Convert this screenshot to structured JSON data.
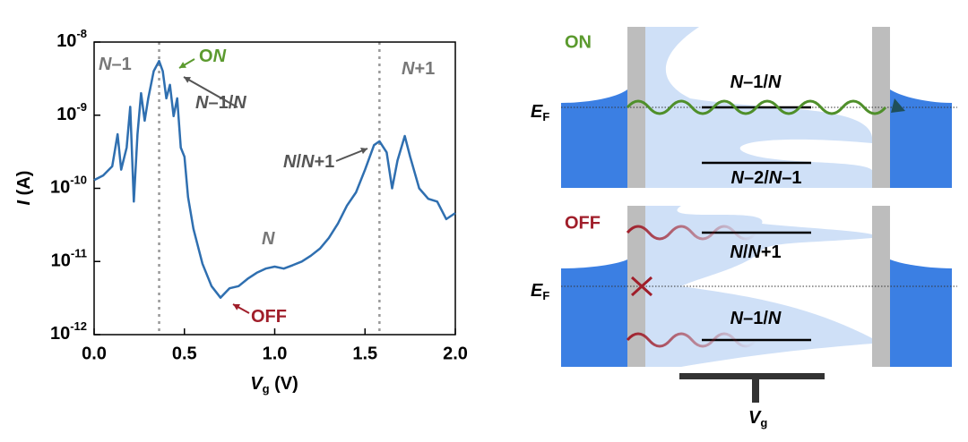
{
  "chart_data": {
    "type": "line",
    "log_y": true,
    "color": "#2f6fb0",
    "xlabel": "Vg (V)",
    "ylabel": "I (A)",
    "x": [
      0,
      0.05,
      0.1,
      0.13,
      0.15,
      0.18,
      0.2,
      0.22,
      0.24,
      0.26,
      0.28,
      0.3,
      0.33,
      0.36,
      0.38,
      0.4,
      0.42,
      0.44,
      0.46,
      0.48,
      0.5,
      0.52,
      0.55,
      0.6,
      0.65,
      0.7,
      0.75,
      0.8,
      0.85,
      0.9,
      0.95,
      1.0,
      1.05,
      1.1,
      1.15,
      1.2,
      1.25,
      1.3,
      1.35,
      1.4,
      1.45,
      1.5,
      1.55,
      1.58,
      1.62,
      1.65,
      1.68,
      1.72,
      1.75,
      1.8,
      1.85,
      1.9,
      1.95,
      2.0
    ],
    "values": [
      1.3e-10,
      1.5e-10,
      2e-10,
      5.5e-10,
      1.8e-10,
      3.6e-10,
      1.3e-09,
      6.6e-11,
      5.5e-10,
      2e-09,
      8.4e-10,
      1.7e-09,
      4e-09,
      5.5e-09,
      4e-09,
      1.7e-09,
      2.6e-09,
      9.7e-10,
      1.7e-09,
      3.6e-10,
      2.7e-10,
      7.6e-11,
      2.8e-11,
      9.3e-12,
      4.6e-12,
      3.2e-12,
      4.3e-12,
      4.6e-12,
      5.8e-12,
      7e-12,
      8e-12,
      8.5e-12,
      8e-12,
      8.9e-12,
      1e-11,
      1.2e-11,
      1.5e-11,
      2.1e-11,
      3.3e-11,
      5.8e-11,
      8.8e-11,
      1.8e-10,
      3.9e-10,
      4.4e-10,
      3.1e-10,
      1e-10,
      2.4e-10,
      5.2e-10,
      2.7e-10,
      1e-10,
      7.2e-11,
      6.6e-11,
      3.8e-11,
      4.6e-11
    ],
    "xlim": [
      0,
      2
    ],
    "xticks": [
      {
        "value": 0,
        "label": "0.0"
      },
      0.5,
      {
        "value": 1,
        "label": "1.0"
      },
      1.5,
      {
        "value": 2,
        "label": "2.0"
      }
    ],
    "ylim": [
      1e-12,
      1e-08
    ],
    "yticks": [
      {
        "value": 1e-12,
        "label": "10-12"
      },
      {
        "value": 1e-11,
        "label": "10-11"
      },
      {
        "value": 1e-10,
        "label": "10-10"
      },
      {
        "value": 1e-09,
        "label": "10-9"
      },
      {
        "value": 1e-08,
        "label": "10-8"
      }
    ],
    "vlines": [
      0.36,
      1.58
    ],
    "annotations": [
      "N–1",
      "ON",
      "N–1/N",
      "N/N+1",
      "N",
      "OFF",
      "N+1"
    ]
  },
  "diagram": {
    "on": {
      "title": "ON",
      "fermi": "EF",
      "upper": "N–1/N",
      "lower": "N–2/N–1"
    },
    "off": {
      "title": "OFF",
      "fermi": "EF",
      "upper": "N/N+1",
      "lower": "N–1/N"
    },
    "gate": "Vg"
  }
}
